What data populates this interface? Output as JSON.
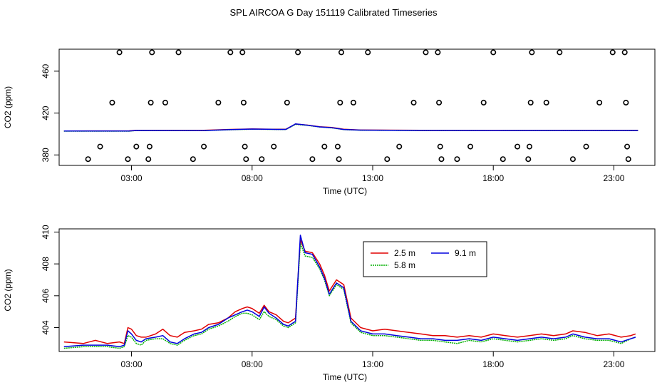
{
  "chart_data": [
    {
      "type": "scatter",
      "title": "SPL AIRCOA G  Day 151119  Calibrated Timeseries",
      "xlabel": "Time (UTC)",
      "ylabel": "CO2 (ppm)",
      "x_unit": "hours UTC",
      "xlim": [
        0.0,
        24.7
      ],
      "ylim": [
        370,
        481
      ],
      "x_ticks": [
        3,
        8,
        13,
        18,
        23
      ],
      "x_tick_labels": [
        "03:00",
        "08:00",
        "13:00",
        "18:00",
        "23:00"
      ],
      "y_ticks": [
        380,
        420,
        460
      ],
      "y_tick_labels": [
        "380",
        "420",
        "460"
      ],
      "grid": false,
      "series": [
        {
          "color": "#000000",
          "marker": "open-circle",
          "points": [
            [
              1.2,
              376
            ],
            [
              1.7,
              388
            ],
            [
              2.2,
              430
            ],
            [
              2.5,
              478
            ],
            [
              2.85,
              376
            ],
            [
              3.2,
              388
            ],
            [
              3.7,
              376
            ],
            [
              3.75,
              388
            ],
            [
              3.8,
              430
            ],
            [
              3.85,
              478
            ],
            [
              4.4,
              430
            ],
            [
              4.95,
              478
            ],
            [
              5.55,
              376
            ],
            [
              6.0,
              388
            ],
            [
              6.6,
              430
            ],
            [
              7.1,
              478
            ],
            [
              7.6,
              478
            ],
            [
              7.65,
              430
            ],
            [
              7.7,
              388
            ],
            [
              7.75,
              376
            ],
            [
              8.4,
              376
            ],
            [
              8.9,
              388
            ],
            [
              9.45,
              430
            ],
            [
              9.9,
              478
            ],
            [
              10.5,
              376
            ],
            [
              11.0,
              388
            ],
            [
              11.55,
              388
            ],
            [
              11.6,
              376
            ],
            [
              11.65,
              430
            ],
            [
              11.7,
              478
            ],
            [
              12.2,
              430
            ],
            [
              12.8,
              478
            ],
            [
              13.6,
              376
            ],
            [
              14.1,
              388
            ],
            [
              14.7,
              430
            ],
            [
              15.2,
              478
            ],
            [
              15.7,
              478
            ],
            [
              15.75,
              430
            ],
            [
              15.8,
              388
            ],
            [
              15.85,
              376
            ],
            [
              16.5,
              376
            ],
            [
              17.05,
              388
            ],
            [
              17.6,
              430
            ],
            [
              18.0,
              478
            ],
            [
              18.4,
              376
            ],
            [
              19.0,
              388
            ],
            [
              19.45,
              376
            ],
            [
              19.5,
              388
            ],
            [
              19.55,
              430
            ],
            [
              19.6,
              478
            ],
            [
              20.2,
              430
            ],
            [
              20.75,
              478
            ],
            [
              21.3,
              376
            ],
            [
              21.85,
              388
            ],
            [
              22.4,
              430
            ],
            [
              22.95,
              478
            ],
            [
              23.45,
              478
            ],
            [
              23.5,
              430
            ],
            [
              23.55,
              388
            ],
            [
              23.6,
              376
            ]
          ]
        },
        {
          "name": "2.5 m",
          "color": "#e00000",
          "line": true,
          "x": [
            0.2,
            2.9,
            3.2,
            6.0,
            7.0,
            8.0,
            9.0,
            9.4,
            9.8,
            10.3,
            10.8,
            11.3,
            11.8,
            12.5,
            15.0,
            18.0,
            21.0,
            24.0
          ],
          "y": [
            402.9,
            403.0,
            403.6,
            403.5,
            404.3,
            404.8,
            404.5,
            404.6,
            409.5,
            408.5,
            407.0,
            406.2,
            404.5,
            403.8,
            403.6,
            403.4,
            403.5,
            403.5
          ]
        },
        {
          "name": "5.8 m",
          "color": "#00b000",
          "line": true,
          "x": [
            0.2,
            2.9,
            3.2,
            6.0,
            7.0,
            8.0,
            9.0,
            9.4,
            9.8,
            10.3,
            10.8,
            11.3,
            11.8,
            12.5,
            15.0,
            18.0,
            21.0,
            24.0
          ],
          "y": [
            402.7,
            402.7,
            403.3,
            403.2,
            404.0,
            404.6,
            404.3,
            404.3,
            409.2,
            408.2,
            406.7,
            405.9,
            404.2,
            403.6,
            403.3,
            403.2,
            403.3,
            403.3
          ]
        },
        {
          "name": "9.1 m",
          "color": "#0000dd",
          "line": true,
          "x": [
            0.2,
            2.9,
            3.2,
            6.0,
            7.0,
            8.0,
            9.0,
            9.4,
            9.8,
            10.3,
            10.8,
            11.3,
            11.8,
            12.5,
            15.0,
            18.0,
            21.0,
            24.0
          ],
          "y": [
            402.8,
            402.8,
            403.4,
            403.3,
            404.1,
            404.7,
            404.4,
            404.4,
            409.6,
            408.4,
            406.8,
            406.0,
            404.3,
            403.7,
            403.4,
            403.3,
            403.4,
            403.4
          ]
        }
      ]
    },
    {
      "type": "line",
      "title": "",
      "xlabel": "Time (UTC)",
      "ylabel": "CO2 (ppm)",
      "x_unit": "hours UTC",
      "xlim": [
        0.0,
        24.7
      ],
      "ylim": [
        402.5,
        410.2
      ],
      "x_ticks": [
        3,
        8,
        13,
        18,
        23
      ],
      "x_tick_labels": [
        "03:00",
        "08:00",
        "13:00",
        "18:00",
        "23:00"
      ],
      "y_ticks": [
        404,
        406,
        408,
        410
      ],
      "y_tick_labels": [
        "404",
        "406",
        "408",
        "410"
      ],
      "grid": false,
      "legend": "top-center",
      "series": [
        {
          "name": "2.5 m",
          "color": "#e00000",
          "x": [
            0.2,
            1.0,
            1.5,
            2.0,
            2.5,
            2.7,
            2.85,
            3.0,
            3.2,
            3.4,
            3.6,
            4.0,
            4.3,
            4.6,
            4.9,
            5.2,
            5.6,
            5.9,
            6.2,
            6.6,
            7.0,
            7.3,
            7.6,
            7.8,
            8.0,
            8.3,
            8.5,
            8.7,
            9.0,
            9.3,
            9.5,
            9.8,
            10.0,
            10.2,
            10.5,
            10.8,
            11.0,
            11.2,
            11.5,
            11.8,
            12.1,
            12.5,
            13.0,
            13.5,
            14.0,
            14.5,
            15.0,
            15.5,
            16.0,
            16.5,
            17.0,
            17.5,
            18.0,
            18.5,
            19.0,
            19.5,
            20.0,
            20.5,
            21.0,
            21.3,
            21.8,
            22.3,
            22.8,
            23.3,
            23.7,
            23.9
          ],
          "y": [
            403.1,
            403.0,
            403.2,
            403.0,
            403.1,
            403.0,
            404.0,
            403.9,
            403.5,
            403.4,
            403.4,
            403.6,
            403.9,
            403.5,
            403.4,
            403.7,
            403.8,
            403.9,
            404.2,
            404.3,
            404.6,
            405.0,
            405.2,
            405.3,
            405.2,
            404.9,
            405.4,
            405.0,
            404.8,
            404.4,
            404.3,
            404.6,
            409.5,
            408.8,
            408.7,
            408.0,
            407.3,
            406.3,
            407.0,
            406.7,
            404.6,
            404.0,
            403.8,
            403.9,
            403.8,
            403.7,
            403.6,
            403.5,
            403.5,
            403.4,
            403.5,
            403.4,
            403.6,
            403.5,
            403.4,
            403.5,
            403.6,
            403.5,
            403.6,
            403.8,
            403.7,
            403.5,
            403.6,
            403.4,
            403.5,
            403.6
          ]
        },
        {
          "name": "5.8 m",
          "color": "#00b000",
          "x": [
            0.2,
            1.0,
            1.5,
            2.0,
            2.5,
            2.7,
            2.85,
            3.0,
            3.2,
            3.4,
            3.6,
            4.0,
            4.3,
            4.6,
            4.9,
            5.2,
            5.6,
            5.9,
            6.2,
            6.6,
            7.0,
            7.3,
            7.6,
            7.8,
            8.0,
            8.3,
            8.5,
            8.7,
            9.0,
            9.3,
            9.5,
            9.8,
            10.0,
            10.2,
            10.5,
            10.8,
            11.0,
            11.2,
            11.5,
            11.8,
            12.1,
            12.5,
            13.0,
            13.5,
            14.0,
            14.5,
            15.0,
            15.5,
            16.0,
            16.5,
            17.0,
            17.5,
            18.0,
            18.5,
            19.0,
            19.5,
            20.0,
            20.5,
            21.0,
            21.3,
            21.8,
            22.3,
            22.8,
            23.3,
            23.7,
            23.9
          ],
          "y": [
            402.7,
            402.8,
            402.8,
            402.8,
            402.7,
            402.8,
            403.5,
            403.4,
            403.0,
            402.9,
            403.2,
            403.3,
            403.3,
            403.0,
            402.9,
            403.2,
            403.5,
            403.6,
            403.9,
            404.1,
            404.4,
            404.7,
            404.9,
            404.9,
            404.8,
            404.5,
            405.0,
            404.7,
            404.5,
            404.1,
            404.0,
            404.3,
            409.3,
            408.5,
            408.4,
            407.7,
            407.0,
            406.0,
            406.7,
            406.4,
            404.3,
            403.7,
            403.5,
            403.5,
            403.4,
            403.3,
            403.2,
            403.2,
            403.1,
            403.0,
            403.2,
            403.1,
            403.3,
            403.2,
            403.1,
            403.2,
            403.3,
            403.2,
            403.3,
            403.5,
            403.3,
            403.2,
            403.2,
            403.0,
            403.3,
            403.4
          ]
        },
        {
          "name": "9.1 m",
          "color": "#0000dd",
          "x": [
            0.2,
            1.0,
            1.5,
            2.0,
            2.5,
            2.7,
            2.85,
            3.0,
            3.2,
            3.4,
            3.6,
            4.0,
            4.3,
            4.6,
            4.9,
            5.2,
            5.6,
            5.9,
            6.2,
            6.6,
            7.0,
            7.3,
            7.6,
            7.8,
            8.0,
            8.3,
            8.5,
            8.7,
            9.0,
            9.3,
            9.5,
            9.8,
            10.0,
            10.2,
            10.5,
            10.8,
            11.0,
            11.2,
            11.5,
            11.8,
            12.1,
            12.5,
            13.0,
            13.5,
            14.0,
            14.5,
            15.0,
            15.5,
            16.0,
            16.5,
            17.0,
            17.5,
            18.0,
            18.5,
            19.0,
            19.5,
            20.0,
            20.5,
            21.0,
            21.3,
            21.8,
            22.3,
            22.8,
            23.3,
            23.7,
            23.9
          ],
          "y": [
            402.8,
            402.9,
            402.9,
            402.9,
            402.8,
            402.9,
            403.8,
            403.6,
            403.2,
            403.1,
            403.3,
            403.4,
            403.5,
            403.1,
            403.0,
            403.3,
            403.6,
            403.7,
            404.0,
            404.2,
            404.6,
            404.8,
            405.0,
            405.1,
            405.0,
            404.7,
            405.3,
            404.9,
            404.6,
            404.2,
            404.1,
            404.4,
            409.8,
            408.7,
            408.6,
            407.8,
            407.1,
            406.1,
            406.8,
            406.5,
            404.4,
            403.8,
            403.6,
            403.6,
            403.5,
            403.4,
            403.3,
            403.3,
            403.2,
            403.2,
            403.3,
            403.2,
            403.4,
            403.3,
            403.2,
            403.3,
            403.4,
            403.3,
            403.4,
            403.6,
            403.4,
            403.3,
            403.3,
            403.1,
            403.3,
            403.4
          ]
        }
      ]
    }
  ]
}
